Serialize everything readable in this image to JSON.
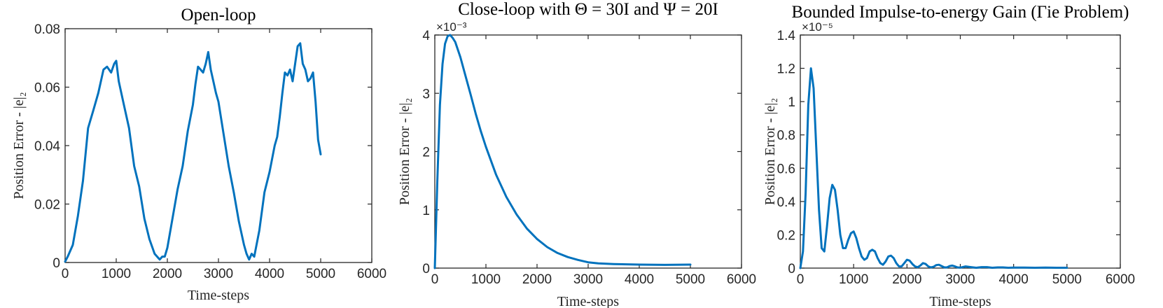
{
  "chart_data": [
    {
      "type": "line",
      "title": "Open-loop",
      "xlabel": "Time-steps",
      "ylabel": "Position Error - |e|₂",
      "xlim": [
        0,
        6000
      ],
      "ylim": [
        0,
        0.08
      ],
      "xticks": [
        "0",
        "1000",
        "2000",
        "3000",
        "4000",
        "5000",
        "6000"
      ],
      "yticks": [
        "0",
        "0.02",
        "0.04",
        "0.06",
        "0.08"
      ],
      "exponent": "",
      "grid": false,
      "color": "#0072BD",
      "x": [
        0,
        50,
        150,
        250,
        350,
        450,
        550,
        650,
        750,
        820,
        900,
        960,
        1000,
        1050,
        1150,
        1250,
        1350,
        1450,
        1550,
        1650,
        1750,
        1850,
        1900,
        1950,
        2000,
        2100,
        2200,
        2300,
        2400,
        2500,
        2550,
        2600,
        2650,
        2700,
        2750,
        2800,
        2850,
        2900,
        2950,
        3000,
        3100,
        3200,
        3300,
        3400,
        3500,
        3550,
        3600,
        3650,
        3700,
        3800,
        3900,
        4000,
        4100,
        4150,
        4200,
        4250,
        4300,
        4350,
        4400,
        4450,
        4500,
        4550,
        4600,
        4650,
        4700,
        4750,
        4800,
        4850,
        4900,
        4950,
        5000
      ],
      "y": [
        0.0003,
        0.002,
        0.006,
        0.016,
        0.028,
        0.046,
        0.052,
        0.058,
        0.066,
        0.067,
        0.065,
        0.068,
        0.069,
        0.062,
        0.054,
        0.046,
        0.033,
        0.026,
        0.015,
        0.008,
        0.003,
        0.001,
        0.002,
        0.002,
        0.005,
        0.015,
        0.025,
        0.033,
        0.045,
        0.054,
        0.061,
        0.067,
        0.066,
        0.065,
        0.068,
        0.072,
        0.066,
        0.062,
        0.058,
        0.055,
        0.044,
        0.033,
        0.024,
        0.014,
        0.006,
        0.003,
        0.001,
        0.003,
        0.002,
        0.011,
        0.024,
        0.031,
        0.04,
        0.043,
        0.05,
        0.058,
        0.065,
        0.064,
        0.066,
        0.062,
        0.068,
        0.074,
        0.075,
        0.068,
        0.066,
        0.062,
        0.063,
        0.065,
        0.055,
        0.042,
        0.037
      ]
    },
    {
      "type": "line",
      "title": "Close-loop with Θ = 30I and Ψ = 20I",
      "xlabel": "Time-steps",
      "ylabel": "Position Error - |e|₂",
      "xlim": [
        0,
        6000
      ],
      "ylim": [
        0,
        4
      ],
      "xticks": [
        "0",
        "1000",
        "2000",
        "3000",
        "4000",
        "5000",
        "6000"
      ],
      "yticks": [
        "0",
        "1",
        "2",
        "3",
        "4"
      ],
      "exponent": "×10⁻³",
      "grid": false,
      "color": "#0072BD",
      "x": [
        0,
        50,
        100,
        150,
        200,
        250,
        300,
        350,
        400,
        500,
        600,
        700,
        800,
        900,
        1000,
        1200,
        1400,
        1600,
        1800,
        2000,
        2200,
        2400,
        2600,
        2800,
        3000,
        3200,
        3500,
        4000,
        4500,
        5000
      ],
      "y": [
        0,
        1.5,
        2.8,
        3.5,
        3.85,
        3.98,
        4.0,
        3.95,
        3.88,
        3.62,
        3.3,
        2.98,
        2.65,
        2.35,
        2.08,
        1.6,
        1.22,
        0.92,
        0.68,
        0.5,
        0.36,
        0.26,
        0.19,
        0.14,
        0.1,
        0.08,
        0.07,
        0.06,
        0.055,
        0.06
      ]
    },
    {
      "type": "line",
      "title": "Bounded Impulse-to-energy Gain (Γie Problem)",
      "xlabel": "Time-steps",
      "ylabel": "Position Error - |e|₂",
      "xlim": [
        0,
        6000
      ],
      "ylim": [
        0,
        1.4
      ],
      "xticks": [
        "0",
        "1000",
        "2000",
        "3000",
        "4000",
        "5000",
        "6000"
      ],
      "yticks": [
        "0",
        "0.2",
        "0.4",
        "0.6",
        "0.8",
        "1",
        "1.2",
        "1.4"
      ],
      "exponent": "×10⁻⁵",
      "grid": false,
      "color": "#0072BD",
      "x": [
        0,
        50,
        100,
        150,
        200,
        250,
        300,
        350,
        400,
        450,
        500,
        550,
        600,
        650,
        700,
        750,
        800,
        850,
        900,
        950,
        1000,
        1050,
        1100,
        1150,
        1200,
        1250,
        1300,
        1350,
        1400,
        1450,
        1500,
        1550,
        1600,
        1650,
        1700,
        1750,
        1800,
        1850,
        1900,
        1950,
        2000,
        2050,
        2100,
        2150,
        2200,
        2250,
        2300,
        2350,
        2400,
        2450,
        2500,
        2550,
        2600,
        2650,
        2700,
        2750,
        2800,
        2850,
        2900,
        2950,
        3000,
        3100,
        3200,
        3300,
        3400,
        3500,
        3600,
        3700,
        3800,
        3900,
        4000,
        4200,
        4400,
        4600,
        4800,
        5000
      ],
      "y": [
        0,
        0.1,
        0.45,
        0.98,
        1.2,
        1.08,
        0.72,
        0.35,
        0.12,
        0.1,
        0.25,
        0.42,
        0.5,
        0.47,
        0.35,
        0.2,
        0.12,
        0.12,
        0.17,
        0.21,
        0.22,
        0.18,
        0.12,
        0.07,
        0.05,
        0.06,
        0.1,
        0.11,
        0.1,
        0.06,
        0.03,
        0.02,
        0.04,
        0.07,
        0.075,
        0.06,
        0.03,
        0.01,
        0.01,
        0.03,
        0.05,
        0.045,
        0.025,
        0.01,
        0.005,
        0.015,
        0.03,
        0.025,
        0.01,
        0.004,
        0.008,
        0.018,
        0.02,
        0.012,
        0.004,
        0.004,
        0.012,
        0.015,
        0.01,
        0.004,
        0.003,
        0.01,
        0.006,
        0.002,
        0.006,
        0.006,
        0.002,
        0.004,
        0.004,
        0.002,
        0.003,
        0.003,
        0.002,
        0.003,
        0.002,
        0.002
      ]
    }
  ]
}
